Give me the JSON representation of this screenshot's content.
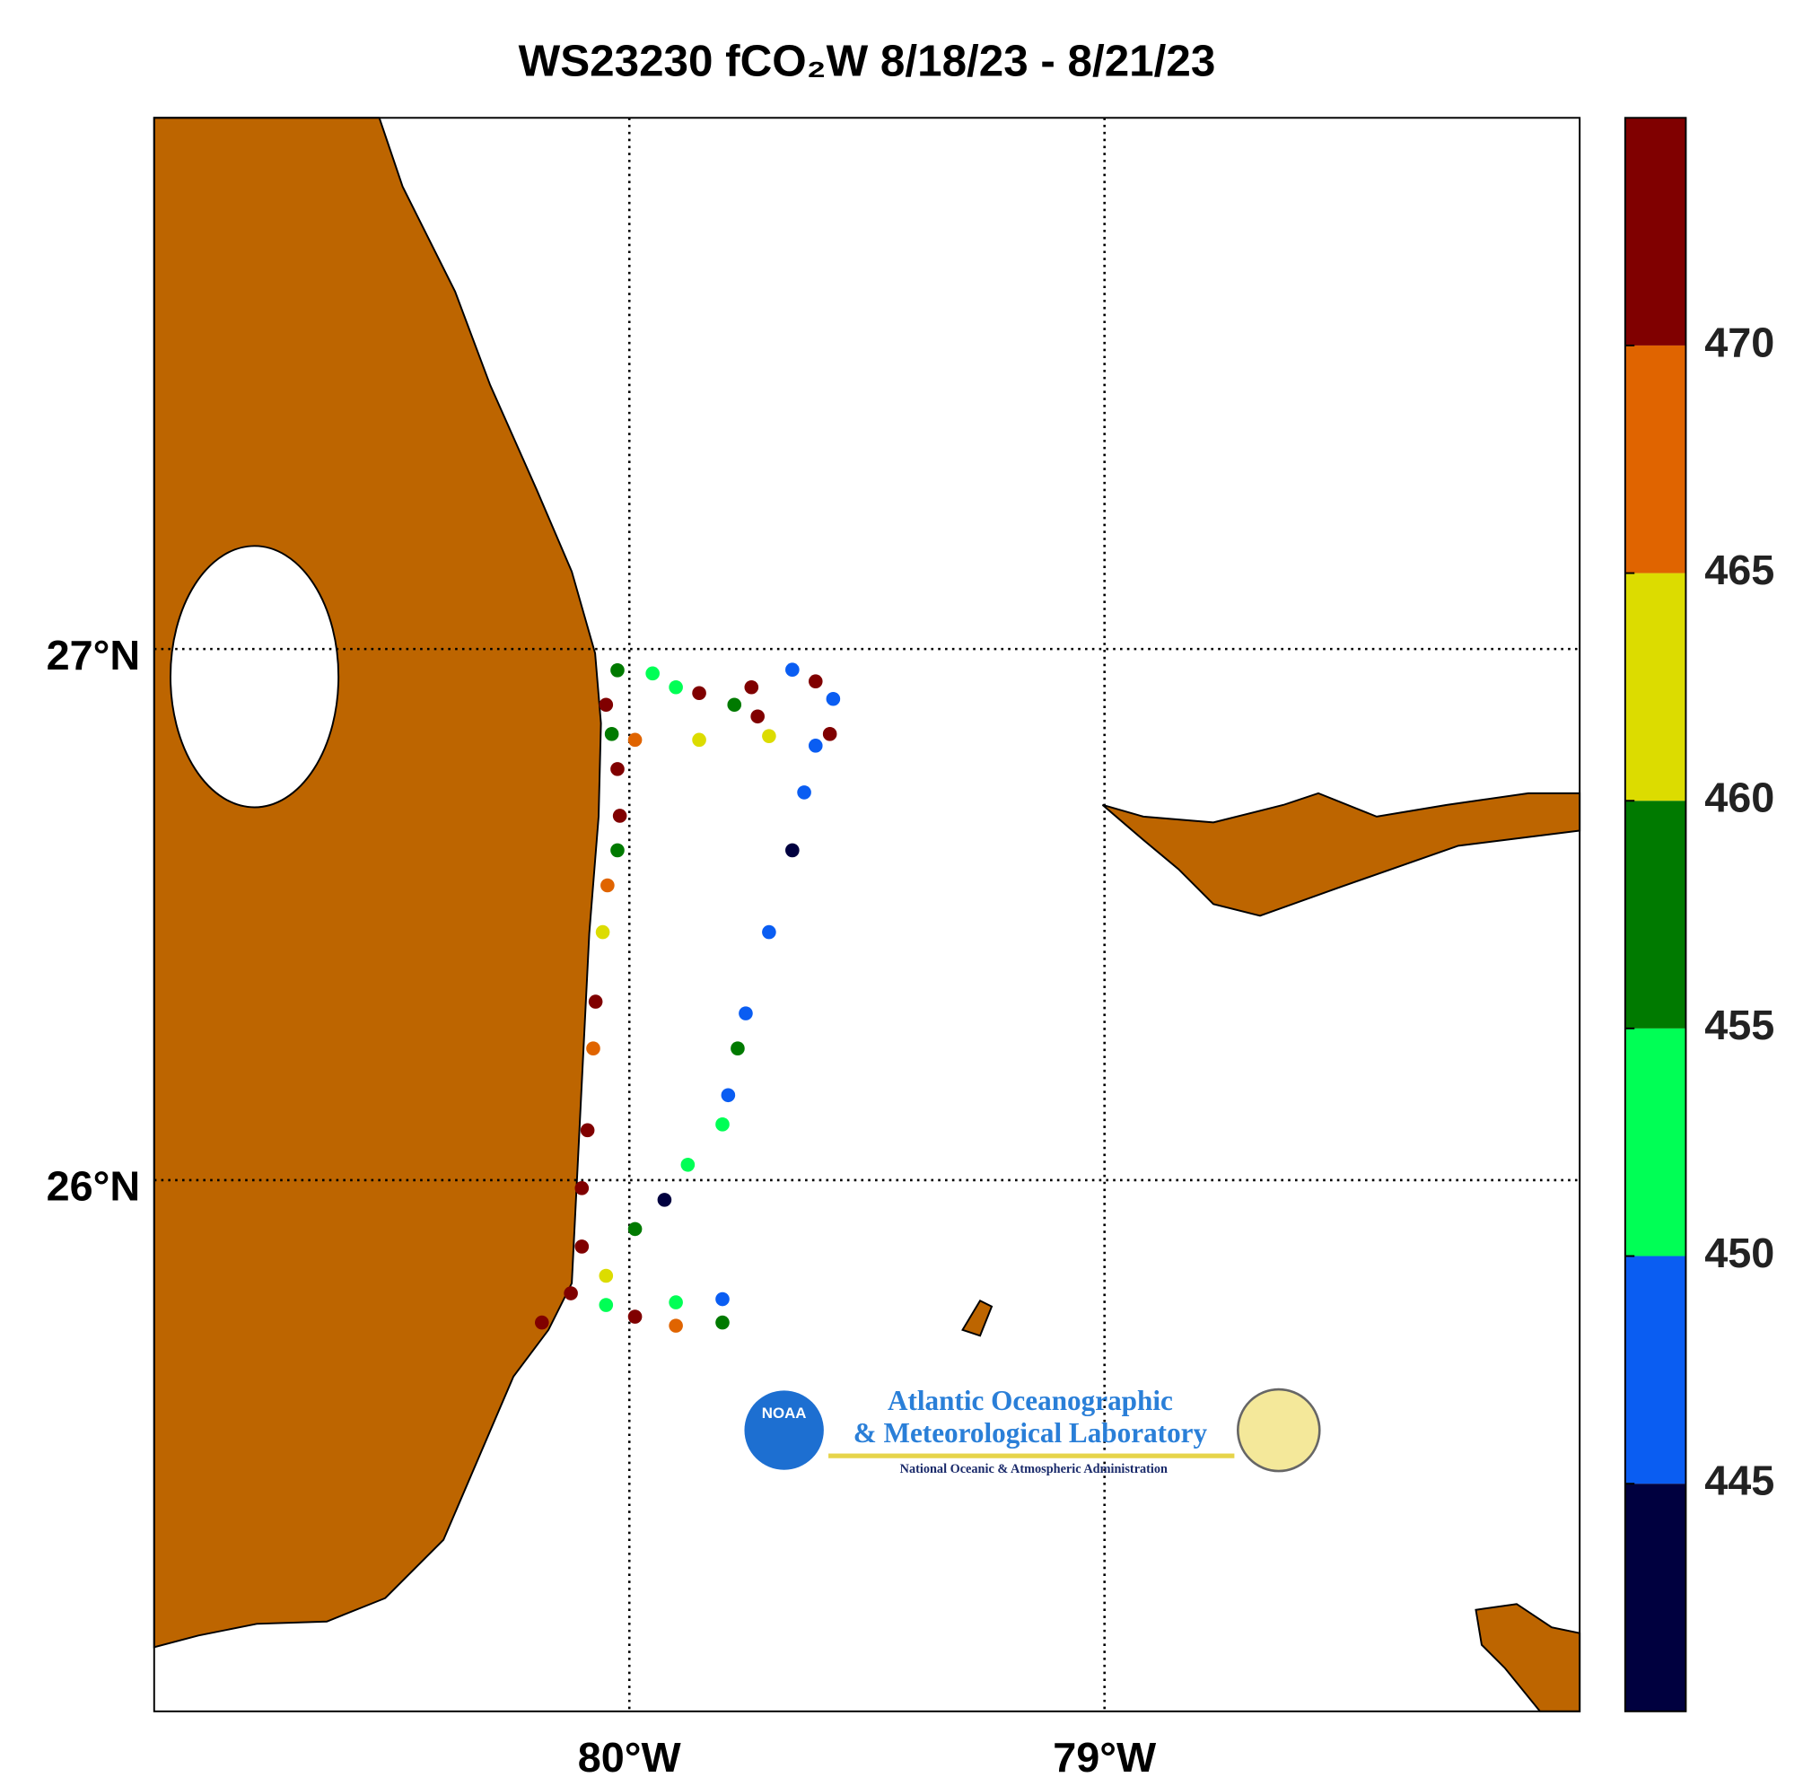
{
  "chart_data": {
    "type": "track-map",
    "title": "WS23230 fCO₂W 8/18/23 - 8/21/23",
    "xlim": [
      -81,
      -78
    ],
    "ylim": [
      25,
      28
    ],
    "xticks": [
      {
        "value": -80,
        "label": "80°W"
      },
      {
        "value": -79,
        "label": "79°W"
      }
    ],
    "yticks": [
      {
        "value": 26,
        "label": "26°N"
      },
      {
        "value": 27,
        "label": "27°N"
      }
    ],
    "grid": true,
    "clim": [
      440,
      475
    ],
    "colors": [
      "#00003f",
      "#0a5df2",
      "#00ff55",
      "#007a00",
      "#dcdc00",
      "#e06400",
      "#800000"
    ],
    "cticks": [
      445,
      450,
      455,
      460,
      465,
      470
    ],
    "x": [
      -80.049,
      -80.025,
      -79.951,
      -79.902,
      -79.853,
      -79.779,
      -79.743,
      -79.73,
      -79.657,
      -79.608,
      -79.571,
      -79.578,
      -79.706,
      -79.853,
      -79.988,
      -79.608,
      -79.632,
      -79.657,
      -79.706,
      -79.755,
      -79.772,
      -79.792,
      -79.804,
      -79.877,
      -79.926,
      -79.988,
      -80.049,
      -80.123,
      -80.184,
      -80.049,
      -79.902,
      -79.804,
      -79.804,
      -79.902,
      -79.988,
      -80.1,
      -80.1,
      -80.088,
      -80.076,
      -80.071,
      -80.056,
      -80.046,
      -80.025,
      -80.02,
      -80.025,
      -80.037
    ],
    "y": [
      26.895,
      26.96,
      26.954,
      26.928,
      26.917,
      26.895,
      26.928,
      26.873,
      26.961,
      26.939,
      26.906,
      26.84,
      26.836,
      26.829,
      26.829,
      26.818,
      26.73,
      26.621,
      26.467,
      26.314,
      26.248,
      26.16,
      26.105,
      26.029,
      25.963,
      25.908,
      25.82,
      25.787,
      25.732,
      25.765,
      25.77,
      25.776,
      25.732,
      25.726,
      25.743,
      25.875,
      25.985,
      26.094,
      26.248,
      26.336,
      26.467,
      26.555,
      26.621,
      26.686,
      26.774,
      26.84
    ],
    "values": [
      470,
      455,
      450,
      452,
      472,
      458,
      472,
      473,
      448,
      472,
      448,
      472,
      462,
      463,
      467,
      448,
      446,
      443,
      448,
      448,
      455,
      448,
      453,
      454,
      443,
      458,
      463,
      472,
      472,
      454,
      453,
      448,
      455,
      467,
      473,
      474,
      472,
      473,
      465,
      473,
      462,
      465,
      458,
      472,
      470,
      458
    ]
  },
  "logo": {
    "badge": "NOAA",
    "line1": "Atlantic Oceanographic",
    "line2": "& Meteorological Laboratory",
    "line3": "National Oceanic & Atmospheric Administration"
  }
}
